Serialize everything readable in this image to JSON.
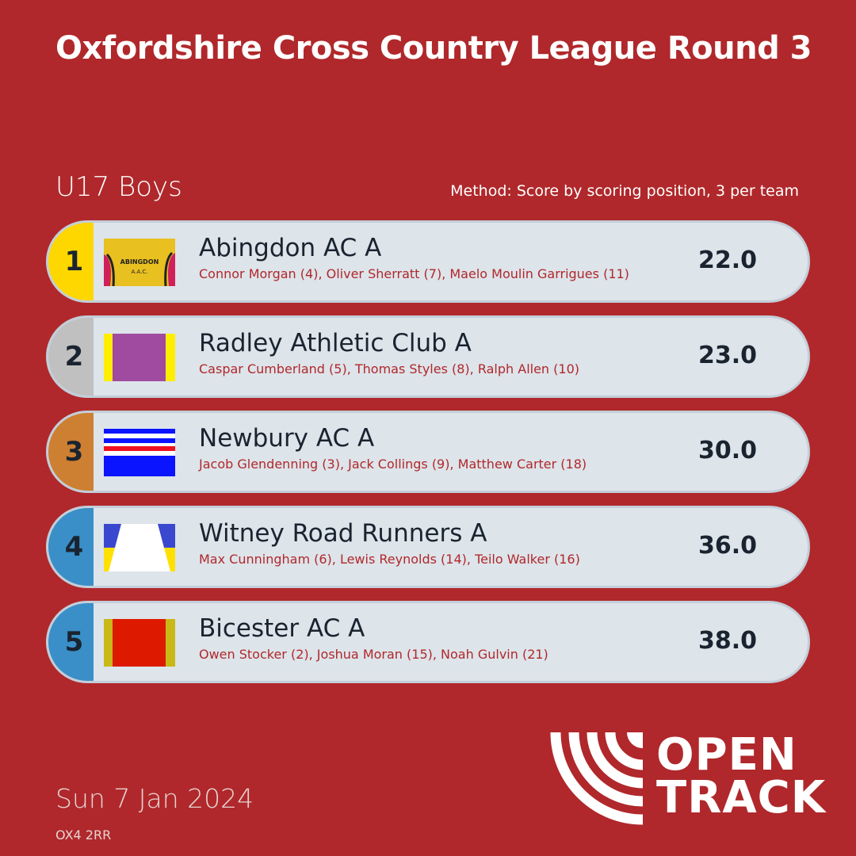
{
  "title": "Oxfordshire Cross Country League Round 3",
  "category": "U17 Boys",
  "method": "Method: Score by scoring position, 3 per team",
  "teams": [
    {
      "rank": "1",
      "name": "Abingdon AC A",
      "runners": "Connor Morgan (4), Oliver Sherratt (7), Maelo Moulin Garrigues (11)",
      "score": "22.0",
      "rank_color": "#ffd700",
      "kit": "abingdon-vest-photo"
    },
    {
      "rank": "2",
      "name": "Radley Athletic Club A",
      "runners": "Caspar Cumberland (5), Thomas Styles (8), Ralph Allen (10)",
      "score": "23.0",
      "rank_color": "#c0c0c0",
      "kit": "purple-yellow"
    },
    {
      "rank": "3",
      "name": "Newbury AC A",
      "runners": "Jacob Glendenning (3), Jack Collings (9), Matthew Carter (18)",
      "score": "30.0",
      "rank_color": "#cd7f32",
      "kit": "blue-red-white-stripes"
    },
    {
      "rank": "4",
      "name": "Witney Road Runners A",
      "runners": "Max Cunningham (6), Lewis Reynolds (14), Teilo Walker (16)",
      "score": "36.0",
      "rank_color": "#3a8fc8",
      "kit": "blue-yellow-white-trapezoid"
    },
    {
      "rank": "5",
      "name": "Bicester AC A",
      "runners": "Owen Stocker (2), Joshua Moran (15), Noah Gulvin (21)",
      "score": "38.0",
      "rank_color": "#3a8fc8",
      "kit": "red-olive"
    }
  ],
  "date": "Sun 7 Jan 2024",
  "postcode": "OX4 2RR",
  "logo": {
    "line1": "OPEN",
    "line2": "TRACK"
  }
}
